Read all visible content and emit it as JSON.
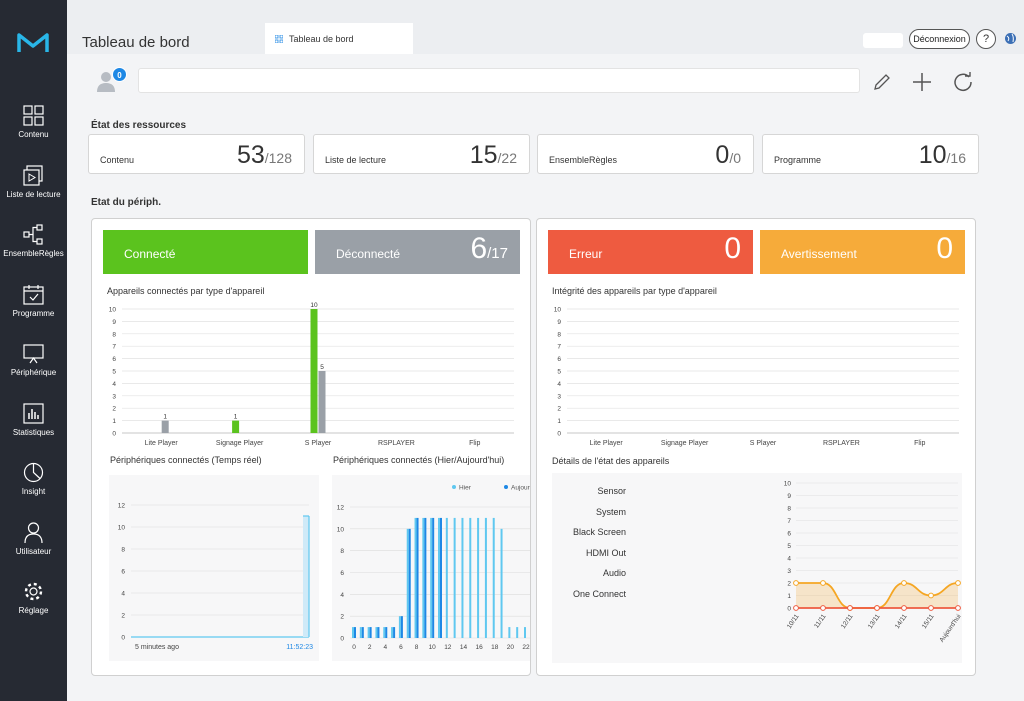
{
  "app": {
    "page_title": "Tableau de bord",
    "tab_label": "Tableau de bord",
    "logout_label": "Déconnexion",
    "help_label": "?"
  },
  "sidebar": {
    "items": [
      {
        "label": "Contenu",
        "icon": "content-grid-icon"
      },
      {
        "label": "Liste de lecture",
        "icon": "playlist-icon"
      },
      {
        "label": "EnsembleRègles",
        "icon": "ruleset-icon"
      },
      {
        "label": "Programme",
        "icon": "schedule-icon"
      },
      {
        "label": "Périphérique",
        "icon": "device-monitor-icon"
      },
      {
        "label": "Statistiques",
        "icon": "statistics-icon"
      },
      {
        "label": "Insight",
        "icon": "insight-pie-icon"
      },
      {
        "label": "Utilisateur",
        "icon": "user-icon"
      },
      {
        "label": "Réglage",
        "icon": "gear-icon"
      }
    ]
  },
  "toolbar": {
    "badge_count": "0",
    "search_value": ""
  },
  "resources": {
    "title": "État des ressources",
    "cards": [
      {
        "label": "Contenu",
        "value": "53",
        "total": "/128"
      },
      {
        "label": "Liste de lecture",
        "value": "15",
        "total": "/22"
      },
      {
        "label": "EnsembleRègles",
        "value": "0",
        "total": "/0"
      },
      {
        "label": "Programme",
        "value": "10",
        "total": "/16"
      }
    ]
  },
  "device_status": {
    "title": "Etat du périph.",
    "connected": {
      "label": "Connecté",
      "color": "#5bc31e"
    },
    "disconnected": {
      "label": "Déconnecté",
      "value": "6",
      "total": "/17",
      "color": "#9aa0a7"
    },
    "error": {
      "label": "Erreur",
      "value": "0",
      "color": "#ee5b40"
    },
    "warning": {
      "label": "Avertissement",
      "value": "0",
      "color": "#f6ab3a"
    }
  },
  "charts": {
    "connected_by_type": {
      "title": "Appareils connectés par type d'appareil",
      "chart_data": {
        "type": "bar",
        "categories": [
          "Lite Player",
          "Signage Player",
          "S Player",
          "RSPLAYER",
          "Flip"
        ],
        "series": [
          {
            "values": [
              0,
              1,
              10,
              0,
              0
            ],
            "color": "#5bc31e"
          },
          {
            "values": [
              1,
              0,
              5,
              0,
              0
            ],
            "color": "#9aa0a7"
          }
        ],
        "y_ticks": [
          "0",
          "1",
          "2",
          "3",
          "4",
          "5",
          "6",
          "7",
          "8",
          "9",
          "10"
        ],
        "ylim": [
          0,
          10
        ]
      }
    },
    "integrity_by_type": {
      "title": "Intégrité des appareils par type d'appareil",
      "chart_data": {
        "type": "bar",
        "categories": [
          "Lite Player",
          "Signage Player",
          "S Player",
          "RSPLAYER",
          "Flip"
        ],
        "series": [
          {
            "values": [
              0,
              0,
              0,
              0,
              0
            ]
          }
        ],
        "y_ticks": [
          "0",
          "1",
          "2",
          "3",
          "4",
          "5",
          "6",
          "7",
          "8",
          "9",
          "10"
        ],
        "ylim": [
          0,
          10
        ]
      }
    },
    "realtime": {
      "title": "Périphériques connectés (Temps réel)",
      "chart_data": {
        "type": "area",
        "y_ticks": [
          "0",
          "2",
          "4",
          "6",
          "8",
          "10",
          "12"
        ],
        "ylim": [
          0,
          12
        ],
        "x_start_label": "5 minutes ago",
        "x_end_label": "11:52:23",
        "last_value": 11
      }
    },
    "day_compare": {
      "title": "Périphériques connectés (Hier/Aujourd'hui)",
      "chart_data": {
        "type": "bar",
        "legend": [
          "Hier",
          "Aujourd'hui"
        ],
        "x_ticks": [
          "0",
          "2",
          "4",
          "6",
          "8",
          "10",
          "12",
          "14",
          "16",
          "18",
          "20",
          "22"
        ],
        "y_ticks": [
          "0",
          "2",
          "4",
          "6",
          "8",
          "10",
          "12"
        ],
        "ylim": [
          0,
          12
        ],
        "series": [
          {
            "name": "Hier",
            "color": "#5fc8f0",
            "values": [
              1,
              1,
              1,
              1,
              1,
              1,
              2,
              10,
              11,
              11,
              11,
              11,
              11,
              11,
              11,
              11,
              11,
              11,
              11,
              10,
              1,
              1,
              1
            ]
          },
          {
            "name": "Aujourd'hui",
            "color": "#1e88e5",
            "values": [
              1,
              1,
              1,
              1,
              1,
              1,
              2,
              10,
              11,
              11,
              11,
              11,
              0,
              0,
              0,
              0,
              0,
              0,
              0,
              0,
              0,
              0,
              0
            ]
          }
        ]
      }
    },
    "status_details": {
      "title": "Détails de l'état des appareils",
      "labels": [
        "Sensor",
        "System",
        "Black Screen",
        "HDMI Out",
        "Audio",
        "One Connect"
      ],
      "chart_data": {
        "type": "line",
        "x": [
          "10/11",
          "11/11",
          "12/11",
          "13/11",
          "14/11",
          "15/11",
          "Aujourd'hui"
        ],
        "y_ticks": [
          "0",
          "1",
          "2",
          "3",
          "4",
          "5",
          "6",
          "7",
          "8",
          "9",
          "10"
        ],
        "ylim": [
          0,
          10
        ],
        "series": [
          {
            "values": [
              2,
              2,
              0,
              0,
              2,
              1,
              2
            ],
            "color": "#f5a623"
          },
          {
            "values": [
              0,
              0,
              0,
              0,
              0,
              0,
              0
            ],
            "color": "#ee5b40"
          }
        ]
      }
    }
  }
}
